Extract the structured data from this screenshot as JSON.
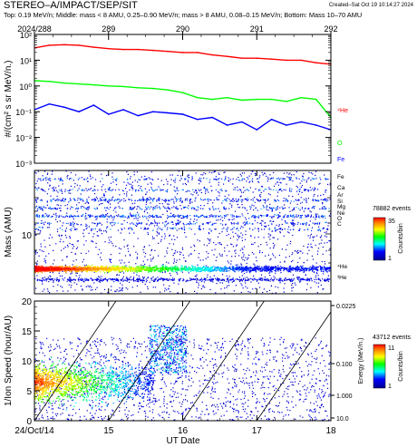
{
  "header": {
    "title": "STEREO–A/IMPACT/SEP/SIT",
    "created": "Created–Sat Oct 19 10:14:27 2024",
    "subtitle": "Top: 0.19 MeV/n; Middle: mass < 8 AMU, 0.25–0.90 MeV/n; mass > 8 AMU, 0.08–0.15 MeV/n; Bottom: Mass 10–70 AMU"
  },
  "colors": {
    "he": "#ff0000",
    "o": "#00ff00",
    "fe": "#0000ff"
  },
  "chart_data": [
    {
      "type": "line",
      "panel": "top",
      "ylabel": "#/(cm² s sr MeV/n.)",
      "y_scale": "log",
      "ylim": [
        0.001,
        100
      ],
      "y_ticks": [
        "10⁻³",
        "10⁻²",
        "10⁻¹",
        "10⁰",
        "10¹",
        "10²"
      ],
      "x_top_labels": [
        "2024/288",
        "289",
        "290",
        "291",
        "292"
      ],
      "xlim": [
        288,
        292
      ],
      "series": [
        {
          "name": "⁴He",
          "color": "#ff0000",
          "x": [
            288.0,
            288.2,
            288.4,
            288.6,
            288.8,
            289.0,
            289.2,
            289.4,
            289.6,
            289.8,
            290.0,
            290.2,
            290.4,
            290.6,
            290.8,
            291.0,
            291.2,
            291.4,
            291.6,
            291.8,
            292.0
          ],
          "values": [
            30,
            38,
            40,
            38,
            32,
            28,
            26,
            26,
            24,
            22,
            20,
            20,
            16,
            14,
            12,
            12,
            11,
            10,
            10,
            8,
            7
          ]
        },
        {
          "name": "O",
          "color": "#00ff00",
          "x": [
            288.0,
            288.2,
            288.4,
            288.6,
            288.8,
            289.0,
            289.2,
            289.4,
            289.6,
            289.8,
            290.0,
            290.2,
            290.4,
            290.6,
            290.8,
            291.0,
            291.2,
            291.4,
            291.6,
            291.8,
            292.0
          ],
          "values": [
            1.6,
            1.5,
            1.3,
            1.2,
            1.1,
            1.0,
            0.95,
            0.85,
            0.8,
            0.7,
            0.55,
            0.35,
            0.3,
            0.35,
            0.28,
            0.3,
            0.3,
            0.25,
            0.35,
            0.3,
            0.06
          ]
        },
        {
          "name": "Fe",
          "color": "#0000ff",
          "x": [
            288.0,
            288.2,
            288.4,
            288.6,
            288.8,
            289.0,
            289.2,
            289.4,
            289.6,
            289.8,
            290.0,
            290.2,
            290.4,
            290.6,
            290.8,
            291.0,
            291.2,
            291.4,
            291.6,
            291.8,
            292.0
          ],
          "values": [
            0.12,
            0.2,
            0.15,
            0.1,
            0.18,
            0.08,
            0.12,
            0.07,
            0.1,
            0.09,
            0.08,
            0.05,
            0.06,
            0.03,
            0.04,
            0.02,
            0.05,
            0.03,
            0.04,
            0.03,
            0.02
          ]
        }
      ]
    },
    {
      "type": "heatmap",
      "panel": "middle",
      "ylabel": "Mass (AMU)",
      "y_scale": "log",
      "y_tick_labels": [
        "10"
      ],
      "species_labels": [
        "Fe",
        "Ca",
        "Ar",
        "Si",
        "Mg",
        "Ne",
        "O",
        "C",
        "⁴He",
        "³He"
      ],
      "xlim": [
        288,
        292
      ],
      "colorbar": {
        "events_label": "78882 events",
        "label": "Counts/bin",
        "min": "1",
        "max": "35"
      }
    },
    {
      "type": "heatmap",
      "panel": "bottom",
      "ylabel": "1/Ion Speed (hour/AU)",
      "ylim": [
        0,
        20
      ],
      "y_ticks": [
        "0",
        "5",
        "10",
        "15",
        "20"
      ],
      "right_ticks": [
        "0.0225",
        "0.100",
        "1.000",
        "10.0"
      ],
      "right_label": "Energy (MeV/n.)",
      "xlabel": "UT Date",
      "x_tick_labels": [
        "24/Oct/14",
        "15",
        "16",
        "17",
        "18"
      ],
      "xlim": [
        14,
        18
      ],
      "colorbar": {
        "events_label": "43712 events",
        "label": "Counts/bin",
        "min": "1",
        "max": "11"
      }
    }
  ]
}
